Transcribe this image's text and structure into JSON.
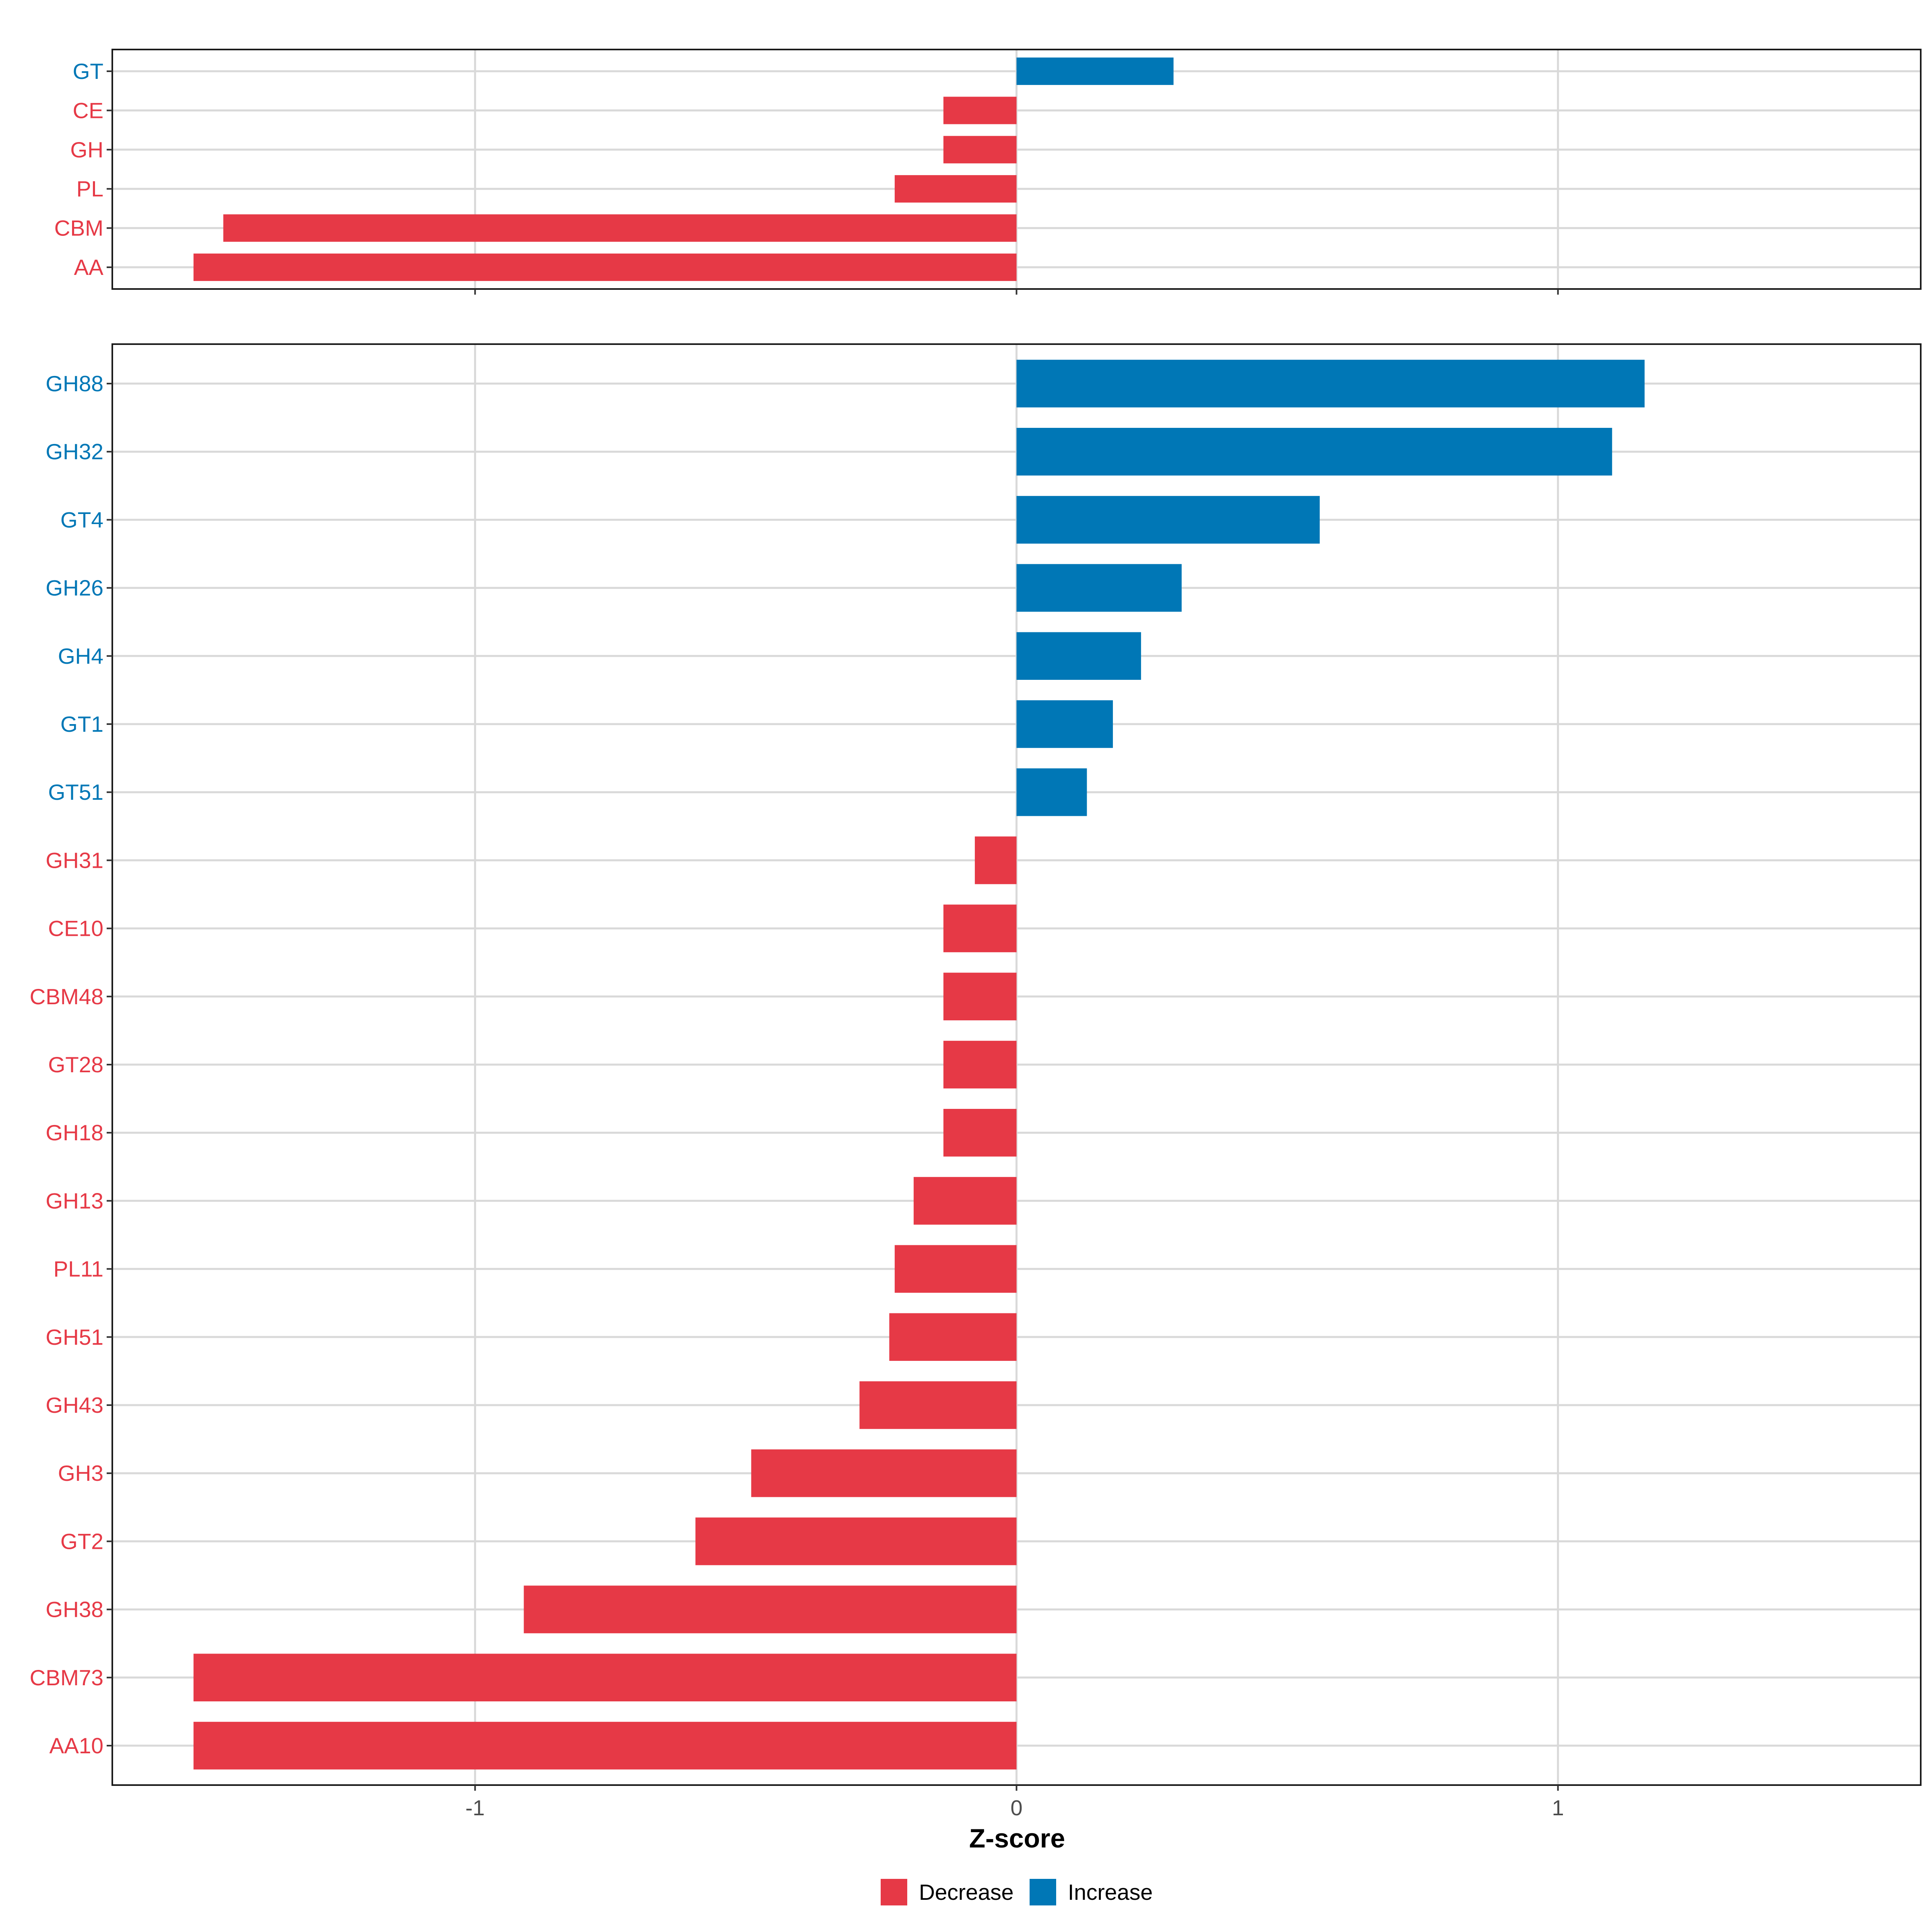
{
  "chart_data": [
    {
      "type": "bar",
      "orientation": "horizontal",
      "panel": "top",
      "categories": [
        "GT",
        "CE",
        "GH",
        "PL",
        "CBM",
        "AA"
      ],
      "values": [
        0.29,
        -0.135,
        -0.135,
        -0.225,
        -1.465,
        -1.52
      ],
      "xlim": [
        -1.67,
        1.67
      ],
      "xticks": [
        -1,
        0,
        1
      ],
      "grid": true
    },
    {
      "type": "bar",
      "orientation": "horizontal",
      "panel": "bottom",
      "categories": [
        "GH88",
        "GH32",
        "GT4",
        "GH26",
        "GH4",
        "GT1",
        "GT51",
        "GH31",
        "CE10",
        "CBM48",
        "GT28",
        "GH18",
        "GH13",
        "PL11",
        "GH51",
        "GH43",
        "GH3",
        "GT2",
        "GH38",
        "CBM73",
        "AA10"
      ],
      "values": [
        1.16,
        1.1,
        0.56,
        0.305,
        0.23,
        0.178,
        0.13,
        -0.077,
        -0.135,
        -0.135,
        -0.135,
        -0.135,
        -0.19,
        -0.225,
        -0.235,
        -0.29,
        -0.49,
        -0.593,
        -0.91,
        -1.52,
        -1.52
      ],
      "xlim": [
        -1.67,
        1.67
      ],
      "xticks": [
        -1,
        0,
        1
      ],
      "xtick_labels": [
        "-1",
        "0",
        "1"
      ],
      "xlabel": "Z-score",
      "grid": true
    }
  ],
  "legend": {
    "position": "bottom",
    "items": [
      {
        "label": "Decrease",
        "color": "#E63946"
      },
      {
        "label": "Increase",
        "color": "#0077B6"
      }
    ]
  },
  "colors": {
    "decrease": "#E63946",
    "increase": "#0077B6",
    "grid": "#D9D9D9",
    "frame": "#1a1a1a",
    "tick_text": "#4D4D4D"
  }
}
